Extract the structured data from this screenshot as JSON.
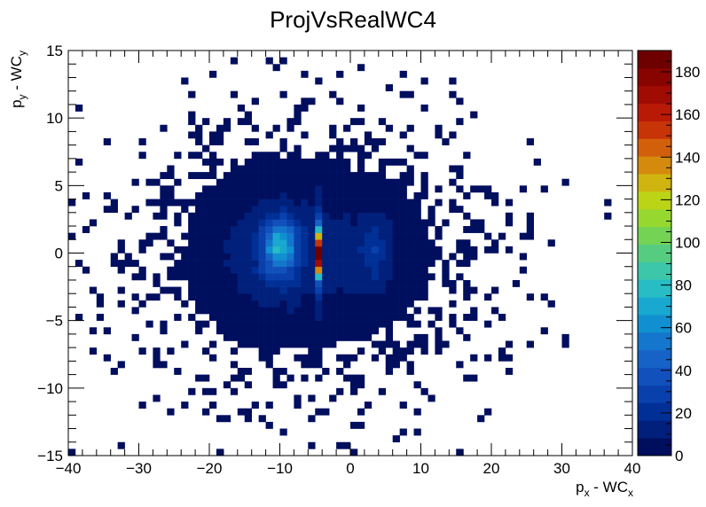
{
  "chart_data": {
    "type": "heatmap",
    "title": "ProjVsRealWC4",
    "xlabel": "p_x - WC_x",
    "ylabel": "p_y - WC_y",
    "xlabel_parts": {
      "main": "p",
      "sub1": "x",
      "mid": " - WC",
      "sub2": "x"
    },
    "ylabel_parts": {
      "main": "p",
      "sub1": "y",
      "mid": " - WC",
      "sub2": "y"
    },
    "xlim": [
      -40,
      40
    ],
    "ylim": [
      -15,
      15
    ],
    "x_ticks": [
      -40,
      -30,
      -20,
      -10,
      0,
      10,
      20,
      30,
      40
    ],
    "y_ticks": [
      -15,
      -10,
      -5,
      0,
      5,
      10,
      15
    ],
    "x_tick_labels": [
      "−40",
      "−30",
      "−20",
      "−10",
      "0",
      "10",
      "20",
      "30",
      "40"
    ],
    "y_tick_labels": [
      "−15",
      "−10",
      "−5",
      "0",
      "5",
      "10",
      "15"
    ],
    "zlim": [
      0,
      190
    ],
    "z_ticks": [
      0,
      20,
      40,
      60,
      80,
      100,
      120,
      140,
      160,
      180
    ],
    "colorbar_tick_labels": [
      "0",
      "20",
      "40",
      "60",
      "80",
      "100",
      "120",
      "140",
      "160",
      "180"
    ],
    "bins": {
      "x": 80,
      "y": 60
    },
    "colorscale": [
      "#000e5e",
      "#00207c",
      "#003096",
      "#0a40ac",
      "#1250bc",
      "#1662c6",
      "#1476cc",
      "#1090d0",
      "#18a8d0",
      "#28bcc4",
      "#3cc6aa",
      "#56cc80",
      "#74d254",
      "#96d830",
      "#bcd416",
      "#d0b410",
      "#d48a0c",
      "#d2600a",
      "#c63408",
      "#b81a06",
      "#a00c04",
      "#880400",
      "#6e0000"
    ],
    "clusters": [
      {
        "x": -10,
        "y": 0.5,
        "peak": 60
      },
      {
        "x": -4.6,
        "y": 0,
        "peak": 185
      },
      {
        "x": 3,
        "y": 0,
        "peak": 30
      }
    ]
  }
}
